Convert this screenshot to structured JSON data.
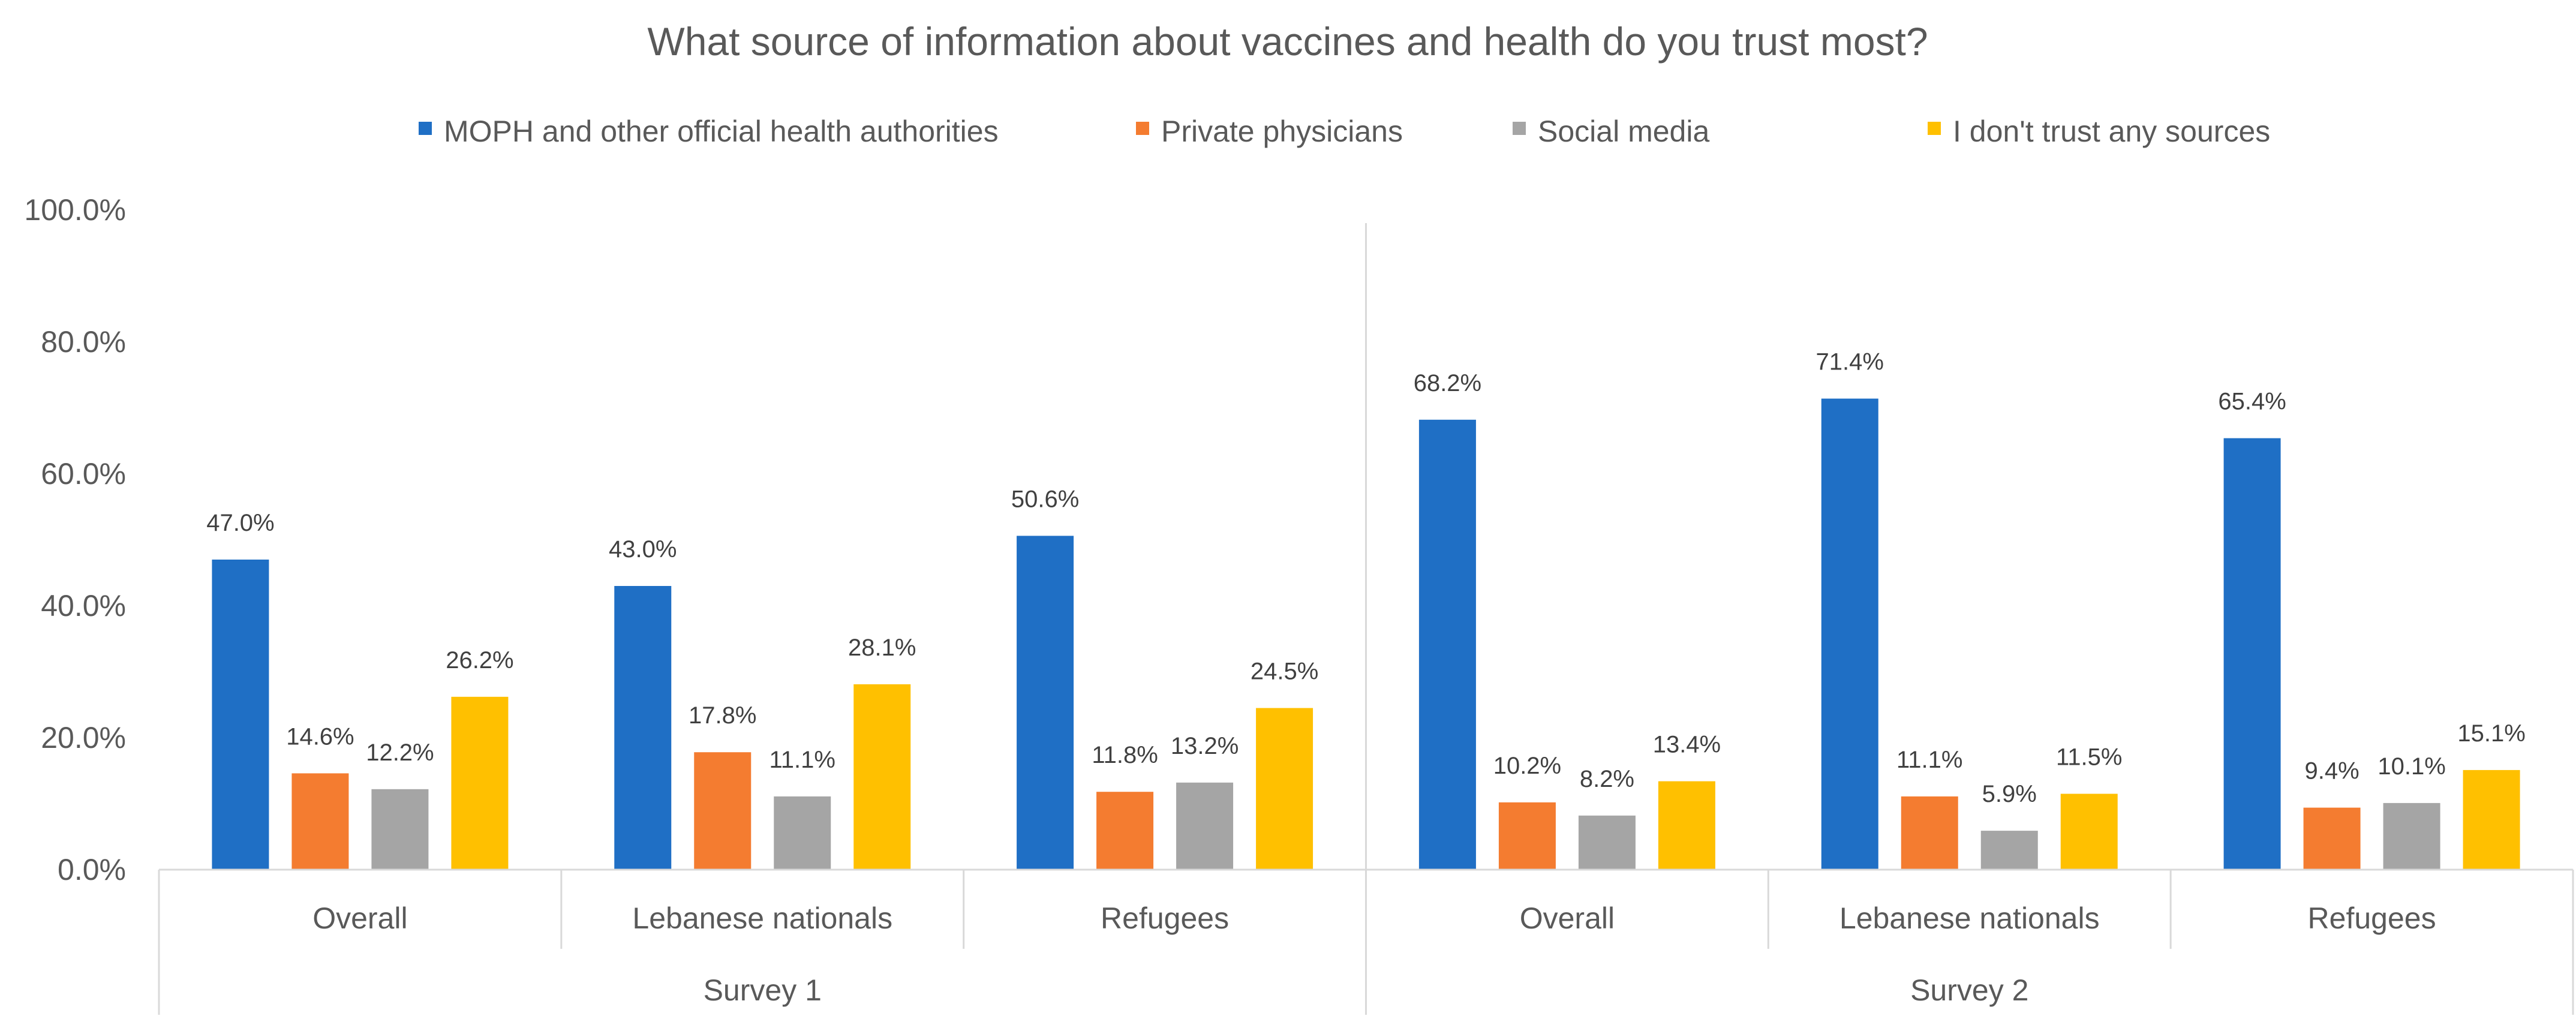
{
  "chart_data": {
    "type": "bar",
    "title": "What source of information about vaccines and health do you trust most?",
    "xlabel": "",
    "ylabel": "",
    "ylim": [
      0,
      100
    ],
    "yticks": [
      "0.0%",
      "20.0%",
      "40.0%",
      "60.0%",
      "80.0%",
      "100.0%"
    ],
    "legend_position": "top",
    "groups": [
      {
        "label": "Survey 1",
        "categories": [
          "Overall",
          "Lebanese nationals",
          "Refugees"
        ]
      },
      {
        "label": "Survey 2",
        "categories": [
          "Overall",
          "Lebanese nationals",
          "Refugees"
        ]
      }
    ],
    "categories": [
      "Overall",
      "Lebanese nationals",
      "Refugees",
      "Overall",
      "Lebanese nationals",
      "Refugees"
    ],
    "series": [
      {
        "name": "MOPH and other official health authorities",
        "color": "#1F6FC5",
        "values": [
          47.0,
          43.0,
          50.6,
          68.2,
          71.4,
          65.4
        ],
        "labels": [
          "47.0%",
          "43.0%",
          "50.6%",
          "68.2%",
          "71.4%",
          "65.4%"
        ]
      },
      {
        "name": "Private physicians",
        "color": "#F47C30",
        "values": [
          14.6,
          17.8,
          11.8,
          10.2,
          11.1,
          9.4
        ],
        "labels": [
          "14.6%",
          "17.8%",
          "11.8%",
          "10.2%",
          "11.1%",
          "9.4%"
        ]
      },
      {
        "name": "Social media",
        "color": "#A5A5A5",
        "values": [
          12.2,
          11.1,
          13.2,
          8.2,
          5.9,
          10.1
        ],
        "labels": [
          "12.2%",
          "11.1%",
          "13.2%",
          "8.2%",
          "5.9%",
          "10.1%"
        ]
      },
      {
        "name": "I don't trust any sources",
        "color": "#FFC000",
        "values": [
          26.2,
          28.1,
          24.5,
          13.4,
          11.5,
          15.1
        ],
        "labels": [
          "26.2%",
          "28.1%",
          "24.5%",
          "13.4%",
          "11.5%",
          "15.1%"
        ]
      }
    ]
  }
}
